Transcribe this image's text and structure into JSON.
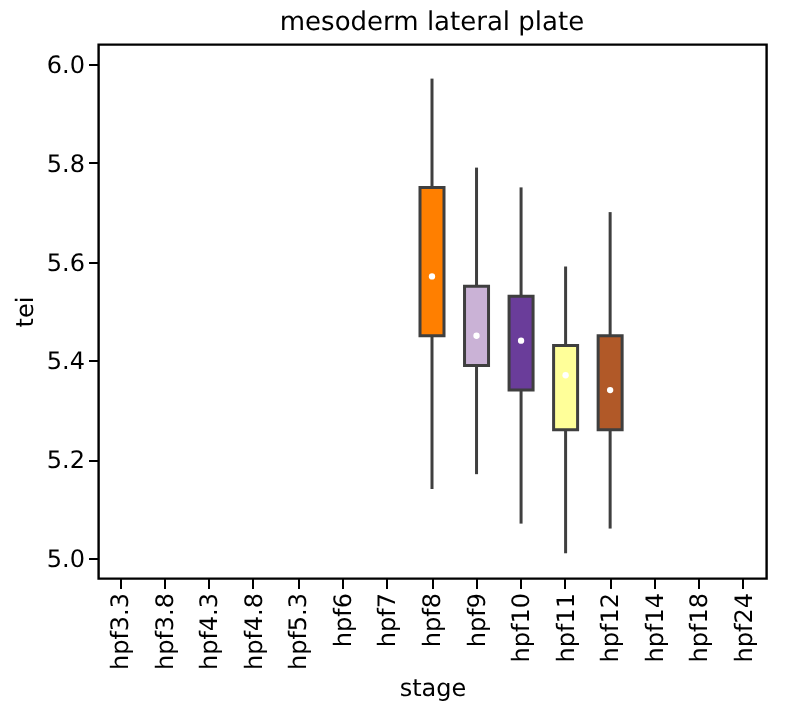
{
  "chart_data": {
    "type": "box",
    "title": "mesoderm lateral plate",
    "xlabel": "stage",
    "ylabel": "tei",
    "categories": [
      "hpf3.3",
      "hpf3.8",
      "hpf4.3",
      "hpf4.8",
      "hpf5.3",
      "hpf6",
      "hpf7",
      "hpf8",
      "hpf9",
      "hpf10",
      "hpf11",
      "hpf12",
      "hpf14",
      "hpf18",
      "hpf24"
    ],
    "boxes": [
      null,
      null,
      null,
      null,
      null,
      null,
      null,
      {
        "low": 5.14,
        "q1": 5.45,
        "median": 5.57,
        "q3": 5.75,
        "high": 5.97
      },
      {
        "low": 5.17,
        "q1": 5.39,
        "median": 5.45,
        "q3": 5.55,
        "high": 5.79
      },
      {
        "low": 5.07,
        "q1": 5.34,
        "median": 5.44,
        "q3": 5.53,
        "high": 5.75
      },
      {
        "low": 5.01,
        "q1": 5.26,
        "median": 5.37,
        "q3": 5.43,
        "high": 5.59
      },
      {
        "low": 5.06,
        "q1": 5.26,
        "median": 5.34,
        "q3": 5.45,
        "high": 5.7
      },
      null,
      null,
      null
    ],
    "colors": [
      null,
      null,
      null,
      null,
      null,
      null,
      null,
      "#ff7f00",
      "#cab2d6",
      "#6a3d9a",
      "#ffff99",
      "#b15928",
      null,
      null,
      null
    ],
    "ylim": [
      4.96,
      6.04
    ],
    "yticks": [
      {
        "value": 5,
        "label": "5.0"
      },
      5.2,
      5.4,
      5.6,
      5.8,
      {
        "value": 6,
        "label": "6.0"
      }
    ],
    "grid": false
  }
}
